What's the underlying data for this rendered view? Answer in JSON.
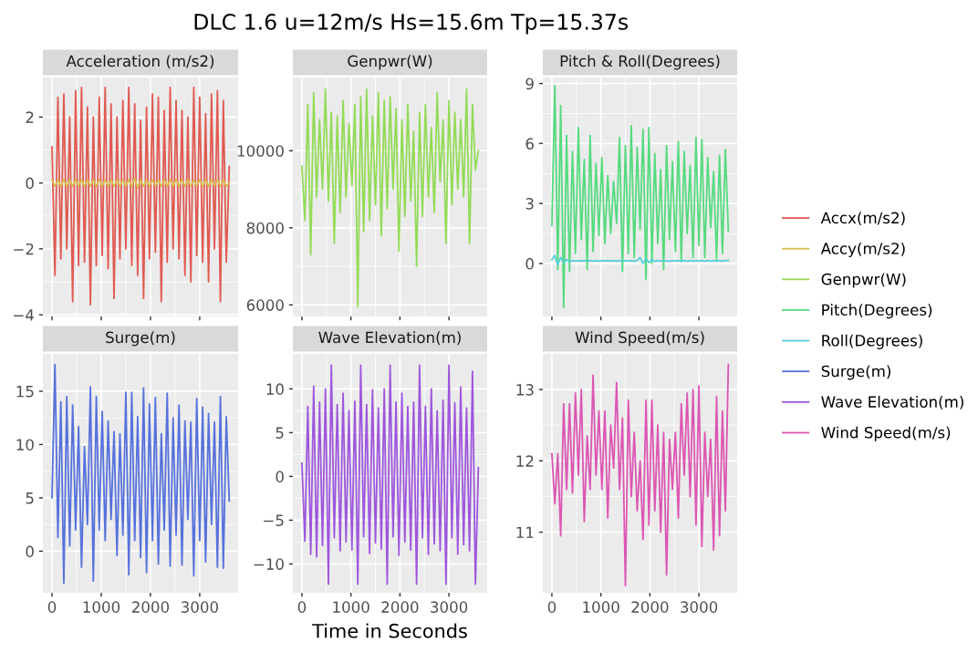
{
  "chart_data": [
    {
      "type": "line",
      "title": "Acceleration (m/s2)",
      "annotations": [
        "DLC 1.6 u=12m/s Hs=15.6m Tp=15.37s"
      ],
      "legend": "right",
      "grid": true,
      "tick_labels": "y",
      "xlim": [
        -185,
        3780
      ],
      "xticks": [
        0,
        1000,
        2000,
        3000
      ],
      "ylim": [
        -4.05,
        3.2
      ],
      "yticks": [
        {
          "value": -4,
          "label": "−4"
        },
        {
          "value": -2,
          "label": "−2"
        },
        0,
        2
      ],
      "x": [
        0,
        60,
        120,
        180,
        240,
        300,
        360,
        420,
        480,
        540,
        600,
        660,
        720,
        780,
        840,
        900,
        960,
        1020,
        1080,
        1140,
        1200,
        1260,
        1320,
        1380,
        1440,
        1500,
        1560,
        1620,
        1680,
        1740,
        1800,
        1860,
        1920,
        1980,
        2040,
        2100,
        2160,
        2220,
        2280,
        2340,
        2400,
        2460,
        2520,
        2580,
        2640,
        2700,
        2760,
        2820,
        2880,
        2940,
        3000,
        3060,
        3120,
        3180,
        3240,
        3300,
        3360,
        3420,
        3480,
        3540,
        3600
      ],
      "series": [
        {
          "name": "Accx(m/s2)",
          "color": "#e05a52",
          "values": [
            1.1,
            -2.8,
            2.6,
            -2.3,
            2.7,
            -2.0,
            2.0,
            -3.6,
            2.8,
            -2.5,
            2.9,
            -2.4,
            2.3,
            -3.7,
            2.0,
            -2.5,
            2.6,
            -2.2,
            2.9,
            -2.6,
            2.4,
            -3.5,
            2.0,
            -2.3,
            2.5,
            -2.0,
            2.9,
            -2.5,
            2.4,
            -2.8,
            1.9,
            -3.5,
            2.3,
            -2.3,
            2.7,
            -2.1,
            2.6,
            -3.6,
            2.2,
            -2.4,
            2.9,
            -2.0,
            2.5,
            -2.3,
            2.2,
            -2.8,
            2.0,
            -3.0,
            2.9,
            -2.2,
            2.6,
            -2.4,
            2.1,
            -3.0,
            2.7,
            -2.0,
            2.8,
            -3.6,
            2.5,
            -2.4,
            0.5
          ]
        },
        {
          "name": "Accy(m/s2)",
          "color": "#d9bd4e",
          "values": [
            0.1,
            -0.1,
            0.1,
            -0.1,
            0.1,
            -0.1,
            0.1,
            -0.1,
            0.1,
            -0.1,
            0.1,
            -0.1,
            0.1,
            -0.1,
            0.1,
            -0.1,
            0.1,
            -0.1,
            0.1,
            -0.1,
            0.1,
            -0.1,
            0.1,
            -0.1,
            0.1,
            -0.1,
            0.1,
            -0.1,
            0.15,
            -0.15,
            0.1,
            -0.1,
            0.1,
            -0.1,
            0.1,
            -0.1,
            0.1,
            -0.1,
            0.1,
            -0.1,
            0.1,
            -0.1,
            0.1,
            -0.1,
            0.1,
            -0.1,
            0.1,
            -0.1,
            0.1,
            -0.1,
            0.1,
            -0.1,
            0.1,
            -0.1,
            0.1,
            -0.1,
            0.1,
            -0.1,
            0.1,
            -0.1,
            0.0
          ]
        }
      ]
    },
    {
      "type": "line",
      "title": "Genpwr(W)",
      "legend": "right",
      "grid": true,
      "tick_labels": "y",
      "xlim": [
        -185,
        3780
      ],
      "xticks": [
        0,
        1000,
        2000,
        3000
      ],
      "ylim": [
        5700,
        11900
      ],
      "yticks": [
        6000,
        8000,
        10000
      ],
      "x": [
        0,
        60,
        120,
        180,
        240,
        300,
        360,
        420,
        480,
        540,
        600,
        660,
        720,
        780,
        840,
        900,
        960,
        1020,
        1080,
        1140,
        1200,
        1260,
        1320,
        1380,
        1440,
        1500,
        1560,
        1620,
        1680,
        1740,
        1800,
        1860,
        1920,
        1980,
        2040,
        2100,
        2160,
        2220,
        2280,
        2340,
        2400,
        2460,
        2520,
        2580,
        2640,
        2700,
        2760,
        2820,
        2880,
        2940,
        3000,
        3060,
        3120,
        3180,
        3240,
        3300,
        3360,
        3420,
        3480,
        3540,
        3600
      ],
      "series": [
        {
          "name": "Genpwr(W)",
          "color": "#93db57",
          "values": [
            9600,
            8200,
            11200,
            7300,
            11500,
            8800,
            10800,
            9000,
            11600,
            8700,
            11000,
            7600,
            10900,
            8400,
            11300,
            8800,
            10700,
            9100,
            11200,
            5950,
            11400,
            7900,
            11600,
            8200,
            10900,
            8600,
            11500,
            7800,
            11300,
            8500,
            11400,
            9000,
            11100,
            7400,
            10800,
            8300,
            11200,
            8700,
            10500,
            7000,
            11000,
            8300,
            11200,
            8800,
            10600,
            8400,
            11500,
            9200,
            10800,
            7600,
            11300,
            8600,
            11000,
            9000,
            10800,
            8800,
            11600,
            7600,
            11200,
            9500,
            10000
          ]
        }
      ]
    },
    {
      "type": "line",
      "title": "Pitch & Roll(Degrees)",
      "legend": "right",
      "grid": true,
      "tick_labels": "y",
      "xlim": [
        -185,
        3780
      ],
      "xticks": [
        0,
        1000,
        2000,
        3000
      ],
      "ylim": [
        -2.65,
        9.3
      ],
      "yticks": [
        0,
        3,
        6,
        9
      ],
      "x": [
        0,
        60,
        120,
        180,
        240,
        300,
        360,
        420,
        480,
        540,
        600,
        660,
        720,
        780,
        840,
        900,
        960,
        1020,
        1080,
        1140,
        1200,
        1260,
        1320,
        1380,
        1440,
        1500,
        1560,
        1620,
        1680,
        1740,
        1800,
        1860,
        1920,
        1980,
        2040,
        2100,
        2160,
        2220,
        2280,
        2340,
        2400,
        2460,
        2520,
        2580,
        2640,
        2700,
        2760,
        2820,
        2880,
        2940,
        3000,
        3060,
        3120,
        3180,
        3240,
        3300,
        3360,
        3420,
        3480,
        3540,
        3600
      ],
      "series": [
        {
          "name": "Pitch(Degrees)",
          "color": "#56da7f",
          "values": [
            1.9,
            8.9,
            -0.3,
            7.9,
            -2.2,
            6.4,
            -0.4,
            5.6,
            0.5,
            6.8,
            1.2,
            5.2,
            -0.3,
            6.4,
            0.6,
            5.0,
            1.4,
            5.3,
            1.0,
            4.4,
            1.5,
            4.1,
            2.0,
            6.3,
            -0.4,
            5.9,
            0.5,
            6.9,
            0.3,
            5.8,
            1.7,
            6.7,
            -0.8,
            6.8,
            0.0,
            5.5,
            1.0,
            4.7,
            -0.3,
            5.9,
            1.2,
            5.1,
            0.6,
            6.1,
            0.1,
            5.6,
            1.5,
            4.9,
            0.3,
            6.3,
            0.9,
            6.2,
            0.3,
            5.3,
            1.8,
            4.6,
            0.2,
            5.4,
            0.5,
            5.7,
            1.6
          ]
        },
        {
          "name": "Roll(Degrees)",
          "color": "#55cfdb",
          "values": [
            0.2,
            0.4,
            -0.05,
            0.3,
            0.05,
            0.2,
            0.1,
            0.15,
            0.12,
            0.15,
            0.12,
            0.15,
            0.12,
            0.15,
            0.12,
            0.15,
            0.12,
            0.15,
            0.12,
            0.15,
            0.12,
            0.15,
            0.12,
            0.15,
            0.12,
            0.15,
            0.12,
            0.15,
            0.12,
            0.15,
            0.3,
            0.0,
            0.25,
            0.05,
            0.2,
            0.1,
            0.15,
            0.12,
            0.15,
            0.12,
            0.12,
            0.15,
            0.12,
            0.15,
            0.12,
            0.15,
            0.12,
            0.15,
            0.12,
            0.15,
            0.12,
            0.15,
            0.12,
            0.15,
            0.12,
            0.15,
            0.12,
            0.15,
            0.12,
            0.15,
            0.15
          ]
        }
      ]
    },
    {
      "type": "line",
      "title": "Surge(m)",
      "legend": "right",
      "grid": true,
      "xlim": [
        -185,
        3780
      ],
      "xticks": [
        0,
        1000,
        2000,
        3000
      ],
      "ylim": [
        -3.9,
        18.5
      ],
      "yticks": [
        0,
        5,
        10,
        15
      ],
      "x": [
        0,
        60,
        120,
        180,
        240,
        300,
        360,
        420,
        480,
        540,
        600,
        660,
        720,
        780,
        840,
        900,
        960,
        1020,
        1080,
        1140,
        1200,
        1260,
        1320,
        1380,
        1440,
        1500,
        1560,
        1620,
        1680,
        1740,
        1800,
        1860,
        1920,
        1980,
        2040,
        2100,
        2160,
        2220,
        2280,
        2340,
        2400,
        2460,
        2520,
        2580,
        2640,
        2700,
        2760,
        2820,
        2880,
        2940,
        3000,
        3060,
        3120,
        3180,
        3240,
        3300,
        3360,
        3420,
        3480,
        3540,
        3600
      ],
      "series": [
        {
          "name": "Surge(m)",
          "color": "#5671dc",
          "values": [
            5.0,
            17.5,
            1.3,
            14.0,
            -3.0,
            14.5,
            0.5,
            13.7,
            2.0,
            11.7,
            -1.5,
            9.8,
            2.5,
            15.4,
            -2.8,
            14.5,
            2.0,
            13.1,
            1.0,
            12.2,
            3.0,
            11.2,
            -0.4,
            11.0,
            1.5,
            14.9,
            -2.2,
            14.9,
            1.0,
            12.6,
            -0.6,
            15.3,
            -2.0,
            13.8,
            1.0,
            14.4,
            -1.2,
            11.0,
            2.0,
            14.8,
            -1.4,
            12.5,
            1.5,
            13.7,
            -1.3,
            12.2,
            3.0,
            12.1,
            -2.3,
            14.3,
            1.0,
            13.5,
            -1.0,
            12.9,
            2.5,
            12.1,
            -1.5,
            14.5,
            -1.6,
            12.6,
            4.7
          ]
        }
      ]
    },
    {
      "type": "line",
      "title": "Wave Elevation(m)",
      "xlabel": "Time in Seconds",
      "legend": "right",
      "grid": true,
      "xlim": [
        -185,
        3780
      ],
      "xticks": [
        0,
        1000,
        2000,
        3000
      ],
      "ylim": [
        -13.3,
        14
      ],
      "yticks": [
        {
          "value": -10,
          "label": "−10"
        },
        {
          "value": -5,
          "label": "−5"
        },
        0,
        5,
        10
      ],
      "x": [
        0,
        60,
        120,
        180,
        240,
        300,
        360,
        420,
        480,
        540,
        600,
        660,
        720,
        780,
        840,
        900,
        960,
        1020,
        1080,
        1140,
        1200,
        1260,
        1320,
        1380,
        1440,
        1500,
        1560,
        1620,
        1680,
        1740,
        1800,
        1860,
        1920,
        1980,
        2040,
        2100,
        2160,
        2220,
        2280,
        2340,
        2400,
        2460,
        2520,
        2580,
        2640,
        2700,
        2760,
        2820,
        2880,
        2940,
        3000,
        3060,
        3120,
        3180,
        3240,
        3300,
        3360,
        3420,
        3480,
        3540,
        3600
      ],
      "series": [
        {
          "name": "Wave Elevation(m)",
          "color": "#9e56dc",
          "values": [
            1.5,
            -7.4,
            8.0,
            -8.9,
            10.3,
            -9.2,
            8.5,
            -7.9,
            10.0,
            -12.3,
            12.7,
            -7.0,
            8.2,
            -8.5,
            9.5,
            -7.5,
            7.5,
            -8.4,
            8.6,
            -12.3,
            12.7,
            -6.9,
            8.2,
            -8.8,
            9.9,
            -7.6,
            7.8,
            -8.3,
            10.0,
            -12.3,
            12.7,
            -6.9,
            8.5,
            -9.0,
            9.5,
            -7.5,
            8.0,
            -8.4,
            8.5,
            -12.3,
            12.7,
            -7.0,
            8.0,
            -8.9,
            10.0,
            -7.7,
            7.5,
            -8.5,
            8.7,
            -12.3,
            12.7,
            -7.0,
            8.4,
            -8.9,
            10.2,
            -7.8,
            7.8,
            -8.5,
            12.0,
            -12.3,
            1.0
          ]
        }
      ]
    },
    {
      "type": "line",
      "title": "Wind Speed(m/s)",
      "legend": "right",
      "grid": true,
      "xlim": [
        -185,
        3780
      ],
      "xticks": [
        0,
        1000,
        2000,
        3000
      ],
      "ylim": [
        10.15,
        13.5
      ],
      "yticks": [
        11,
        12,
        13
      ],
      "x": [
        0,
        60,
        120,
        180,
        240,
        300,
        360,
        420,
        480,
        540,
        600,
        660,
        720,
        780,
        840,
        900,
        960,
        1020,
        1080,
        1140,
        1200,
        1260,
        1320,
        1380,
        1440,
        1500,
        1560,
        1620,
        1680,
        1740,
        1800,
        1860,
        1920,
        1980,
        2040,
        2100,
        2160,
        2220,
        2280,
        2340,
        2400,
        2460,
        2520,
        2580,
        2640,
        2700,
        2760,
        2820,
        2880,
        2940,
        3000,
        3060,
        3120,
        3180,
        3240,
        3300,
        3360,
        3420,
        3480,
        3540,
        3600
      ],
      "series": [
        {
          "name": "Wind Speed(m/s)",
          "color": "#dc56b3",
          "values": [
            12.1,
            11.4,
            12.1,
            10.95,
            12.8,
            11.6,
            12.8,
            11.55,
            12.95,
            11.8,
            13.0,
            11.15,
            12.35,
            11.6,
            13.2,
            11.8,
            12.7,
            11.6,
            12.7,
            11.2,
            12.5,
            11.9,
            13.1,
            11.6,
            12.6,
            10.25,
            12.85,
            11.5,
            12.4,
            11.3,
            12.0,
            10.9,
            12.85,
            11.1,
            12.85,
            11.3,
            12.5,
            11.0,
            12.4,
            10.4,
            12.3,
            11.6,
            12.4,
            11.2,
            12.8,
            11.8,
            12.95,
            11.5,
            13.0,
            11.1,
            13.05,
            10.8,
            12.4,
            11.5,
            12.3,
            10.75,
            12.9,
            10.95,
            12.7,
            11.3,
            13.35
          ]
        }
      ]
    }
  ]
}
